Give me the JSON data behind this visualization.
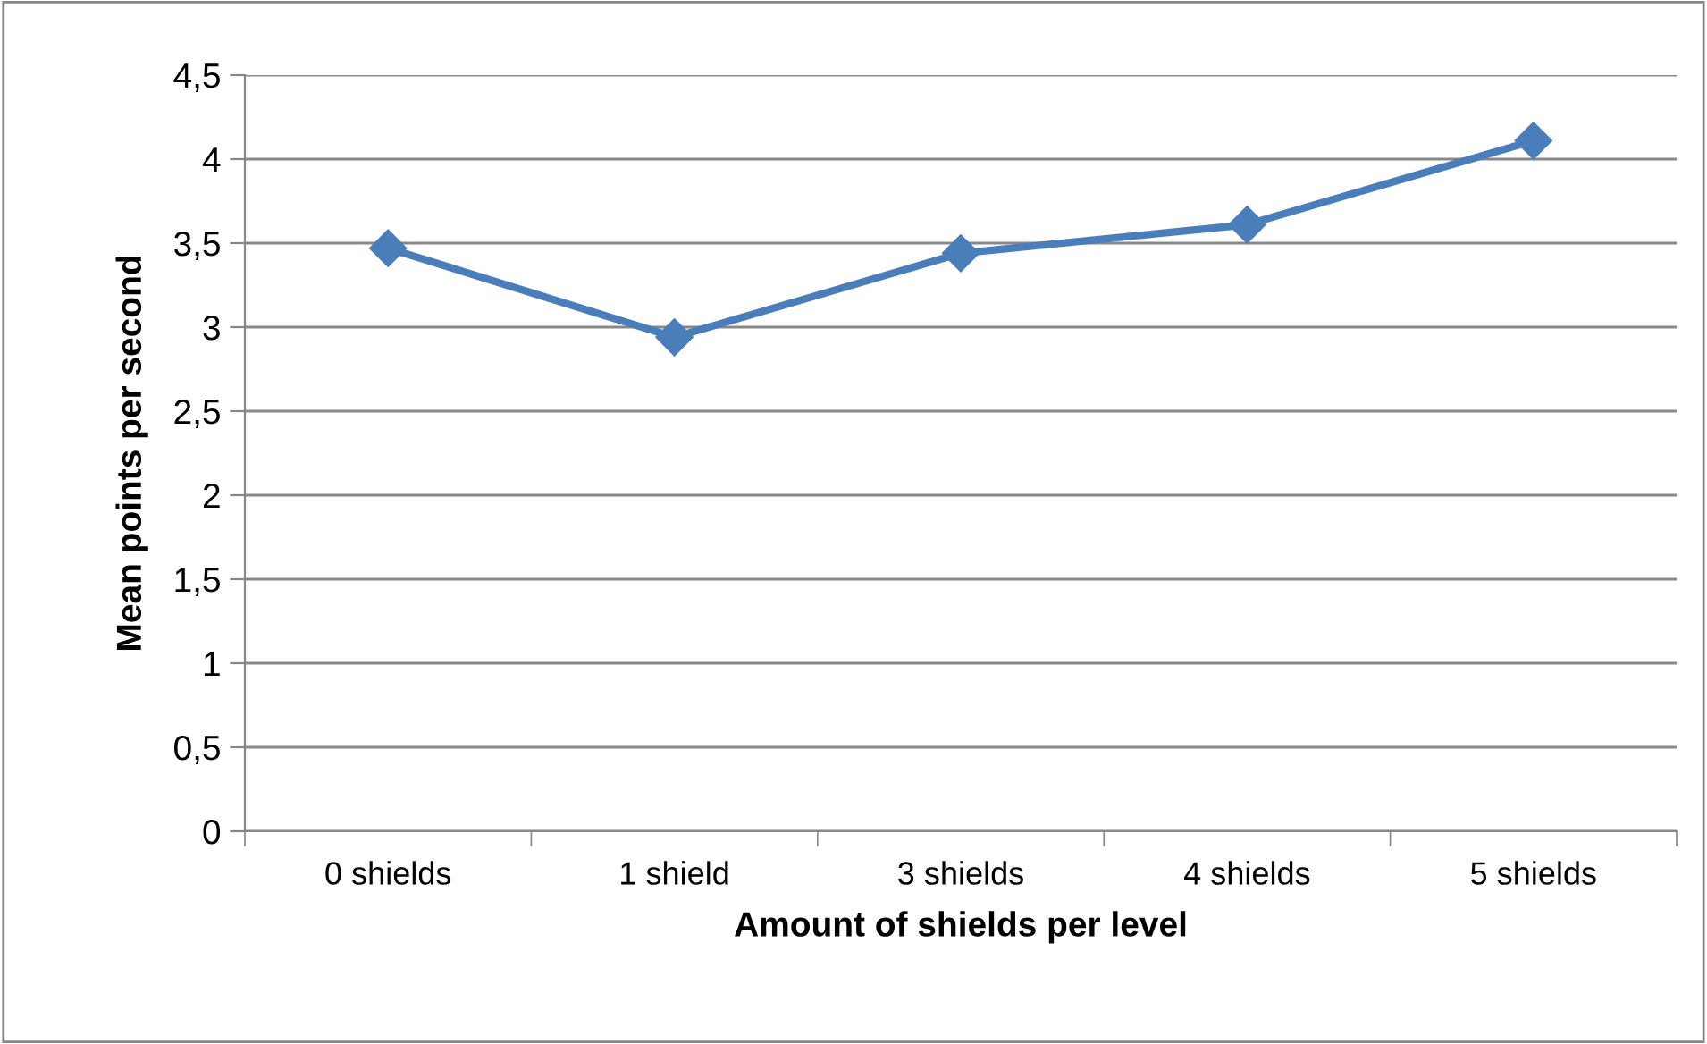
{
  "chart_data": {
    "type": "line",
    "xlabel": "Amount of shields per level",
    "ylabel": "Mean points per second",
    "categories": [
      "0 shields",
      "1 shield",
      "3 shields",
      "4 shields",
      "5 shields"
    ],
    "series": [
      {
        "color": "#4a7ebb",
        "values": [
          3.47,
          2.94,
          3.44,
          3.61,
          4.11
        ]
      }
    ],
    "ylim": [
      0,
      4.5
    ],
    "yticks": [
      0,
      {
        "value": 0.5,
        "label": "0,5"
      },
      1,
      {
        "value": 1.5,
        "label": "1,5"
      },
      2,
      {
        "value": 2.5,
        "label": "2,5"
      },
      3,
      {
        "value": 3.5,
        "label": "3,5"
      },
      4,
      {
        "value": 4.5,
        "label": "4,5"
      }
    ],
    "grid": "y",
    "marker": "diamond",
    "line_style": "solid"
  }
}
